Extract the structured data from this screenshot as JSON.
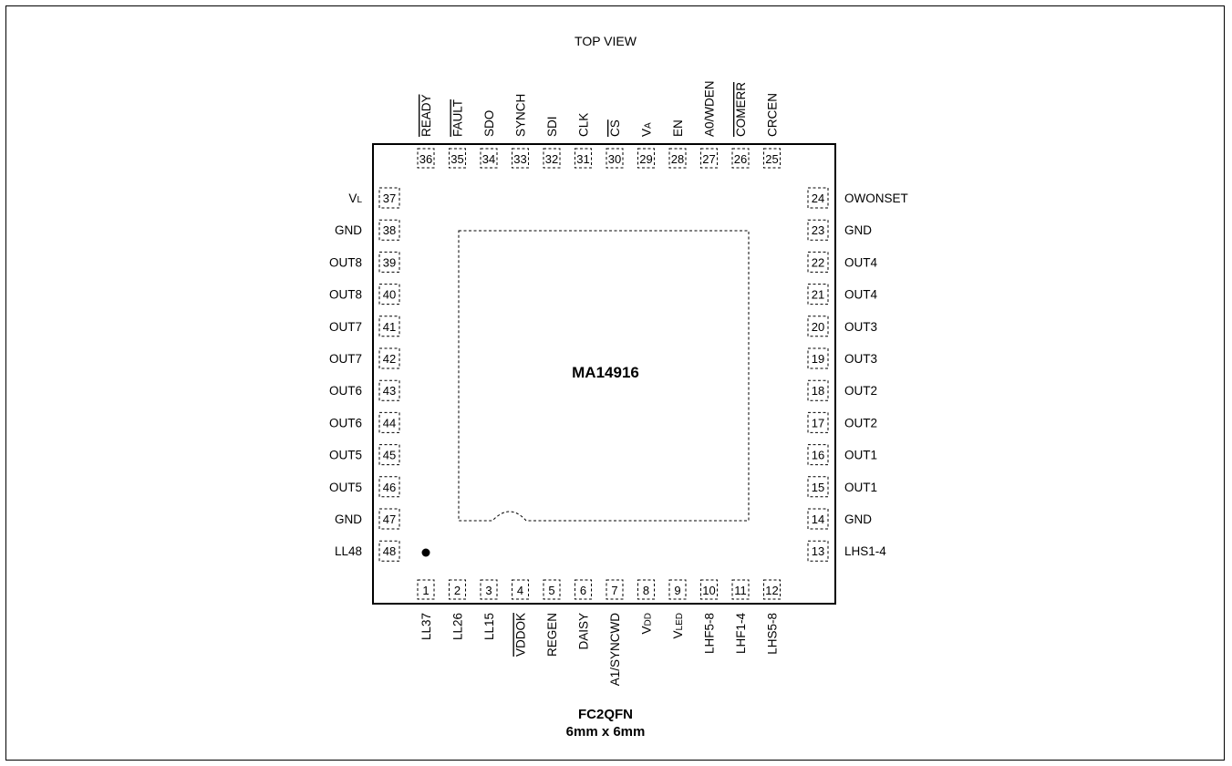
{
  "title": "TOP VIEW",
  "part_name": "MA14916",
  "package": {
    "name": "FC2QFN",
    "size": "6mm x 6mm"
  },
  "pins": {
    "top": [
      {
        "num": "36",
        "label": "READY",
        "overline": true
      },
      {
        "num": "35",
        "label": "FAULT",
        "overline": true
      },
      {
        "num": "34",
        "label": "SDO",
        "overline": false
      },
      {
        "num": "33",
        "label": "SYNCH",
        "overline": false
      },
      {
        "num": "32",
        "label": "SDI",
        "overline": false
      },
      {
        "num": "31",
        "label": "CLK",
        "overline": false
      },
      {
        "num": "30",
        "label": "CS",
        "overline": true
      },
      {
        "num": "29",
        "label": "VA",
        "overline": false,
        "sub": "A"
      },
      {
        "num": "28",
        "label": "EN",
        "overline": false
      },
      {
        "num": "27",
        "label": "A0/WDEN",
        "overline": false
      },
      {
        "num": "26",
        "label": "COMERR",
        "overline": true
      },
      {
        "num": "25",
        "label": "CRCEN",
        "overline": false
      }
    ],
    "bottom": [
      {
        "num": "1",
        "label": "LL37",
        "overline": false
      },
      {
        "num": "2",
        "label": "LL26",
        "overline": false
      },
      {
        "num": "3",
        "label": "LL15",
        "overline": false
      },
      {
        "num": "4",
        "label": "VDDOK",
        "overline": true
      },
      {
        "num": "5",
        "label": "REGEN",
        "overline": false
      },
      {
        "num": "6",
        "label": "DAISY",
        "overline": false
      },
      {
        "num": "7",
        "label": "A1/SYNCWD",
        "overline": false
      },
      {
        "num": "8",
        "label": "VDD",
        "overline": false,
        "sub": "DD"
      },
      {
        "num": "9",
        "label": "VLED",
        "overline": false,
        "sub": "LED"
      },
      {
        "num": "10",
        "label": "LHF5-8",
        "overline": false
      },
      {
        "num": "11",
        "label": "LHF1-4",
        "overline": false
      },
      {
        "num": "12",
        "label": "LHS5-8",
        "overline": false
      }
    ],
    "left": [
      {
        "num": "37",
        "label": "VL",
        "sub": "L"
      },
      {
        "num": "38",
        "label": "GND"
      },
      {
        "num": "39",
        "label": "OUT8"
      },
      {
        "num": "40",
        "label": "OUT8"
      },
      {
        "num": "41",
        "label": "OUT7"
      },
      {
        "num": "42",
        "label": "OUT7"
      },
      {
        "num": "43",
        "label": "OUT6"
      },
      {
        "num": "44",
        "label": "OUT6"
      },
      {
        "num": "45",
        "label": "OUT5"
      },
      {
        "num": "46",
        "label": "OUT5"
      },
      {
        "num": "47",
        "label": "GND"
      },
      {
        "num": "48",
        "label": "LL48"
      }
    ],
    "right": [
      {
        "num": "24",
        "label": "OWONSET"
      },
      {
        "num": "23",
        "label": "GND"
      },
      {
        "num": "22",
        "label": "OUT4"
      },
      {
        "num": "21",
        "label": "OUT4"
      },
      {
        "num": "20",
        "label": "OUT3"
      },
      {
        "num": "19",
        "label": "OUT3"
      },
      {
        "num": "18",
        "label": "OUT2"
      },
      {
        "num": "17",
        "label": "OUT2"
      },
      {
        "num": "16",
        "label": "OUT1"
      },
      {
        "num": "15",
        "label": "OUT1"
      },
      {
        "num": "14",
        "label": "GND"
      },
      {
        "num": "13",
        "label": "LHS1-4"
      }
    ]
  }
}
